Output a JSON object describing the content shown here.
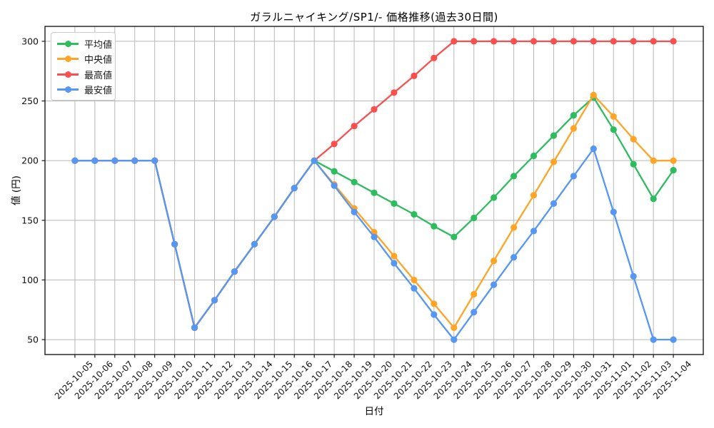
{
  "chart_data": {
    "type": "line",
    "title": "ガラルニャイキング/SP1/- 価格推移(過去30日間)",
    "xlabel": "日付",
    "ylabel": "値 (円)",
    "x": [
      "2025-10-05",
      "2025-10-06",
      "2025-10-07",
      "2025-10-08",
      "2025-10-09",
      "2025-10-10",
      "2025-10-11",
      "2025-10-12",
      "2025-10-13",
      "2025-10-14",
      "2025-10-15",
      "2025-10-16",
      "2025-10-17",
      "2025-10-18",
      "2025-10-19",
      "2025-10-20",
      "2025-10-21",
      "2025-10-22",
      "2025-10-23",
      "2025-10-24",
      "2025-10-25",
      "2025-10-26",
      "2025-10-27",
      "2025-10-28",
      "2025-10-29",
      "2025-10-30",
      "2025-10-31",
      "2025-11-01",
      "2025-11-02",
      "2025-11-03",
      "2025-11-04"
    ],
    "y_ticks": [
      50,
      100,
      150,
      200,
      250,
      300
    ],
    "ylim": [
      37.5,
      312.5
    ],
    "grid": true,
    "grid_color": "#b8b8b8",
    "axis_color": "#1a1a1a",
    "legend_position": "upper-left",
    "series": [
      {
        "id": "average",
        "name": "平均値",
        "color": "#2ebd5e",
        "values": [
          200,
          200,
          200,
          200,
          200,
          130,
          60,
          83,
          107,
          130,
          153,
          177,
          200,
          191,
          182,
          173,
          164,
          155,
          145,
          136,
          152,
          169,
          187,
          204,
          221,
          238,
          253,
          226,
          197,
          168,
          192
        ]
      },
      {
        "id": "median",
        "name": "中央値",
        "color": "#ffa424",
        "values": [
          200,
          200,
          200,
          200,
          200,
          130,
          60,
          83,
          107,
          130,
          153,
          177,
          200,
          180,
          160,
          140,
          120,
          100,
          80,
          60,
          88,
          116,
          144,
          171,
          199,
          227,
          255,
          237,
          218,
          200,
          200
        ]
      },
      {
        "id": "max",
        "name": "最高値",
        "color": "#fa4f4f",
        "values": [
          200,
          200,
          200,
          200,
          200,
          130,
          60,
          83,
          107,
          130,
          153,
          177,
          200,
          214,
          229,
          243,
          257,
          271,
          286,
          300,
          300,
          300,
          300,
          300,
          300,
          300,
          300,
          300,
          300,
          300,
          300
        ]
      },
      {
        "id": "min",
        "name": "最安値",
        "color": "#5597f2",
        "values": [
          200,
          200,
          200,
          200,
          200,
          130,
          60,
          83,
          107,
          130,
          153,
          177,
          200,
          179,
          157,
          136,
          114,
          93,
          71,
          50,
          73,
          96,
          119,
          141,
          164,
          187,
          210,
          157,
          103,
          50,
          50
        ]
      }
    ]
  }
}
